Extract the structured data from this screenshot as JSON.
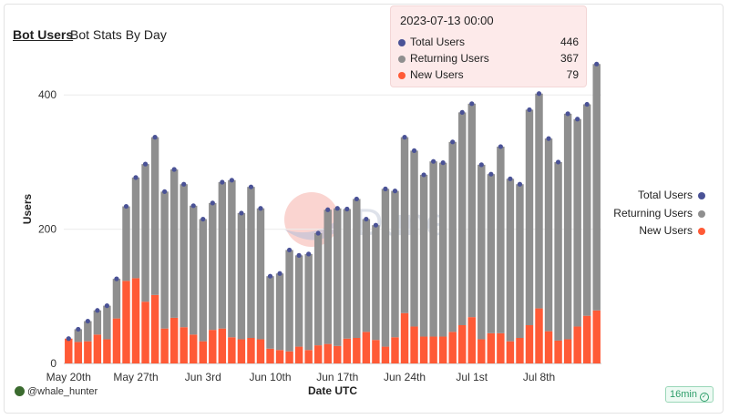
{
  "header": {
    "title": "Bot Users",
    "subtitle": "Bot Stats By Day"
  },
  "tooltip": {
    "date": "2023-07-13 00:00",
    "rows": [
      {
        "label": "Total Users",
        "value": "446"
      },
      {
        "label": "Returning Users",
        "value": "367"
      },
      {
        "label": "New Users",
        "value": "79"
      }
    ]
  },
  "legend": [
    {
      "label": "Total Users",
      "color": "#4a5296"
    },
    {
      "label": "Returning Users",
      "color": "#8f8f8f"
    },
    {
      "label": "New Users",
      "color": "#ff5a36"
    }
  ],
  "footer": {
    "author": "@whale_hunter",
    "badge": "16min"
  },
  "watermark": "Dune",
  "chart_data": {
    "type": "bar",
    "stacked": true,
    "xlabel": "Date UTC",
    "ylabel": "Users",
    "ylim": [
      0,
      460
    ],
    "yticks": [
      0,
      200,
      400
    ],
    "xticks": [
      {
        "label": "May 20th",
        "index": 0
      },
      {
        "label": "May 27th",
        "index": 7
      },
      {
        "label": "Jun 3rd",
        "index": 14
      },
      {
        "label": "Jun 10th",
        "index": 21
      },
      {
        "label": "Jun 17th",
        "index": 28
      },
      {
        "label": "Jun 24th",
        "index": 35
      },
      {
        "label": "Jul 1st",
        "index": 42
      },
      {
        "label": "Jul 8th",
        "index": 49
      }
    ],
    "grid": true,
    "legend_position": "right",
    "colors": {
      "total": "#4a5296",
      "returning": "#8f8f8f",
      "new": "#ff5a36"
    },
    "series": [
      {
        "name": "New Users",
        "values": [
          37,
          32,
          33,
          43,
          36,
          67,
          123,
          127,
          92,
          102,
          52,
          68,
          54,
          43,
          33,
          50,
          52,
          39,
          36,
          38,
          36,
          22,
          20,
          18,
          25,
          20,
          27,
          29,
          26,
          37,
          38,
          47,
          35,
          25,
          39,
          75,
          55,
          40,
          40,
          40,
          47,
          57,
          69,
          36,
          45,
          45,
          33,
          38,
          57,
          82,
          48,
          34,
          36,
          55,
          71,
          79
        ]
      },
      {
        "name": "Returning Users",
        "values": [
          0,
          19,
          30,
          36,
          50,
          59,
          111,
          150,
          205,
          235,
          204,
          221,
          213,
          192,
          182,
          189,
          218,
          234,
          188,
          225,
          195,
          108,
          114,
          151,
          136,
          143,
          167,
          200,
          205,
          193,
          207,
          168,
          171,
          235,
          218,
          262,
          262,
          241,
          261,
          259,
          283,
          317,
          318,
          260,
          237,
          278,
          242,
          229,
          321,
          320,
          287,
          266,
          336,
          309,
          315,
          367
        ]
      }
    ],
    "totals": [
      37,
      51,
      63,
      79,
      86,
      126,
      234,
      277,
      297,
      337,
      256,
      289,
      267,
      235,
      215,
      239,
      270,
      273,
      224,
      263,
      231,
      130,
      134,
      169,
      161,
      163,
      194,
      229,
      231,
      230,
      245,
      215,
      206,
      260,
      257,
      337,
      317,
      281,
      301,
      299,
      330,
      374,
      387,
      296,
      282,
      323,
      275,
      267,
      378,
      402,
      335,
      300,
      372,
      364,
      386,
      446
    ]
  }
}
